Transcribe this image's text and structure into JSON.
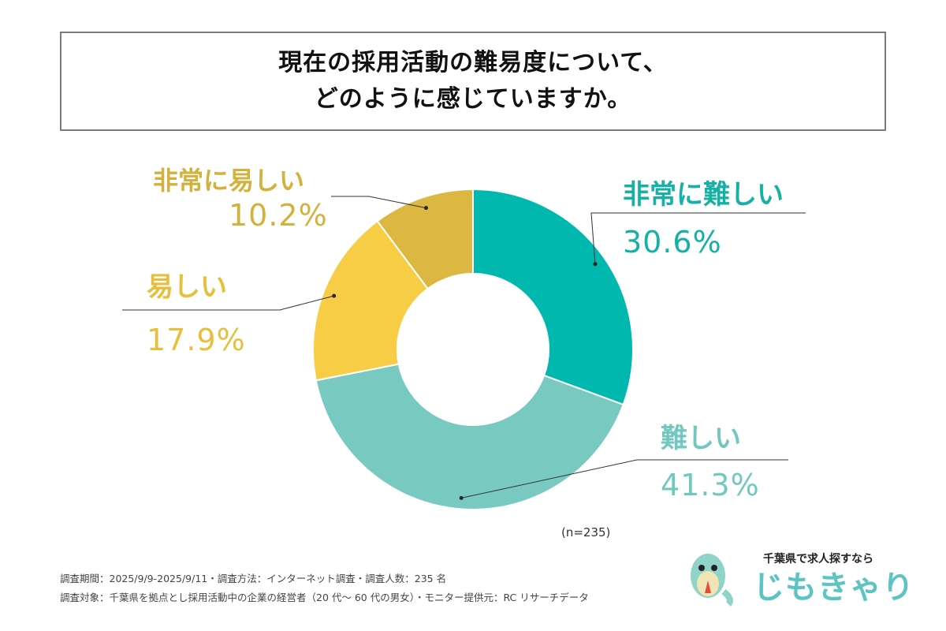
{
  "title": {
    "line1": "現在の採用活動の難易度について、",
    "line2": "どのように感じていますか。"
  },
  "chart_data": {
    "type": "pie",
    "title": "現在の採用活動の難易度について、どのように感じていますか。",
    "note": "(n=235)",
    "slices": [
      {
        "label": "非常に難しい",
        "value": 30.6,
        "value_label": "30.6%",
        "color": "#00b8ad",
        "label_color": "#16b0a6"
      },
      {
        "label": "難しい",
        "value": 41.3,
        "value_label": "41.3%",
        "color": "#78c9c0",
        "label_color": "#72c8bf"
      },
      {
        "label": "易しい",
        "value": 17.9,
        "value_label": "17.9%",
        "color": "#f6cd44",
        "label_color": "#e8bf3c"
      },
      {
        "label": "非常に易しい",
        "value": 10.2,
        "value_label": "10.2%",
        "color": "#dcb842",
        "label_color": "#d4b03c"
      }
    ]
  },
  "footer": {
    "line1": "調査期間：2025/9/9-2025/9/11・調査方法：インターネット調査・調査人数：235 名",
    "line2": "調査対象：千葉県を拠点とし採用活動中の企業の経営者（20 代〜 60 代の男女）・モニター提供元：RC リサーチデータ"
  },
  "logo": {
    "tagline": "千葉県で求人探すなら",
    "name": "じもきゃり"
  }
}
